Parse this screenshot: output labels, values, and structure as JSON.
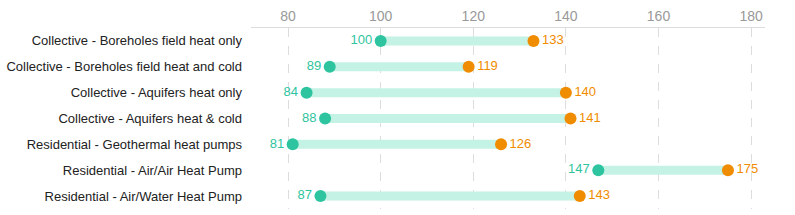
{
  "chart_data": {
    "type": "dumbbell",
    "orientation": "horizontal",
    "categories": [
      "Collective - Boreholes field heat only",
      "Collective - Boreholes field heat and cold",
      "Collective - Aquifers heat only",
      "Collective - Aquifers heat & cold",
      "Residential - Geothermal heat pumps",
      "Residential - Air/Air Heat Pump",
      "Residential - Air/Water Heat Pump"
    ],
    "series": [
      {
        "color": "#2ec4a0",
        "values": [
          100,
          89,
          84,
          88,
          81,
          147,
          87
        ]
      },
      {
        "color": "#f08c00",
        "values": [
          133,
          119,
          140,
          141,
          126,
          175,
          143
        ]
      }
    ],
    "xlim": [
      72,
      183
    ],
    "xticks": [
      80,
      100,
      120,
      140,
      160,
      180
    ],
    "grid": true,
    "data_labels": true
  }
}
